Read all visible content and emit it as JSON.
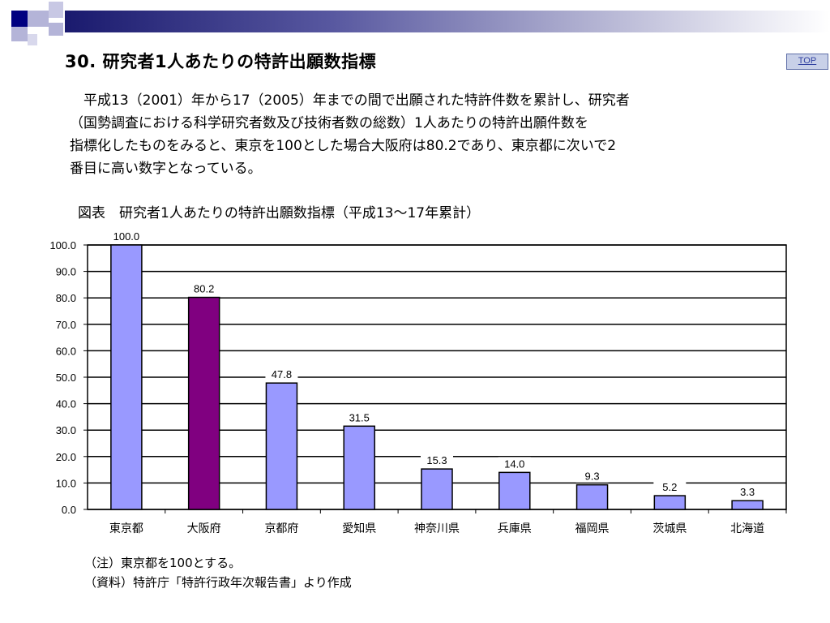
{
  "slide": {
    "title": "30. 研究者1人あたりの特許出願数指標",
    "top_button_label": "TOP",
    "body_lines": [
      "　平成13（2001）年から17（2005）年までの間で出願された特許件数を累計し、研究者",
      "（国勢調査における科学研究者数及び技術者数の総数）1人あたりの特許出願件数を",
      "指標化したものをみると、東京を100とした場合大阪府は80.2であり、東京都に次いで2",
      "番目に高い数字となっている。"
    ],
    "figure_caption": "図表　研究者1人あたりの特許出願数指標（平成13～17年累計）",
    "notes": [
      "（注）東京都を100とする。",
      "（資料）特許庁「特許行政年次報告書」より作成"
    ]
  },
  "colors": {
    "bar_default": "#9999ff",
    "bar_highlight": "#800080",
    "bar_stroke": "#000000",
    "header_dark": "#000080",
    "header_light": "#9999cc"
  },
  "chart_data": {
    "type": "bar",
    "categories": [
      "東京都",
      "大阪府",
      "京都府",
      "愛知県",
      "神奈川県",
      "兵庫県",
      "福岡県",
      "茨城県",
      "北海道"
    ],
    "values": [
      100.0,
      80.2,
      47.8,
      31.5,
      15.3,
      14.0,
      9.3,
      5.2,
      3.3
    ],
    "data_labels": [
      "100.0",
      "80.2",
      "47.8",
      "31.5",
      "15.3",
      "14.0",
      "9.3",
      "5.2",
      "3.3"
    ],
    "highlight_category": "大阪府",
    "ylim": [
      0,
      100
    ],
    "yticks": [
      "0.0",
      "10.0",
      "20.0",
      "30.0",
      "40.0",
      "50.0",
      "60.0",
      "70.0",
      "80.0",
      "90.0",
      "100.0"
    ],
    "grid": true,
    "legend": "none"
  }
}
